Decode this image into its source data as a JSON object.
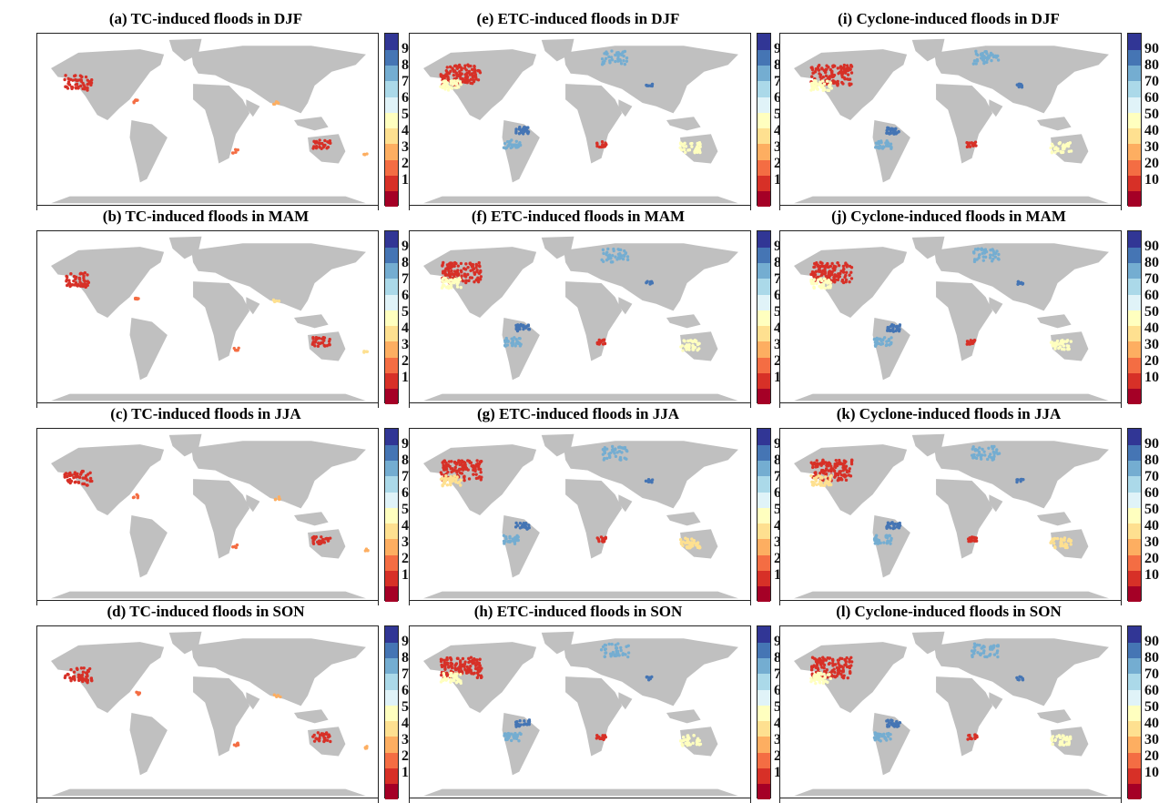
{
  "figure": {
    "panels": [
      {
        "id": "a",
        "title": "(a) TC-induced floods in DJF",
        "cyclone_type": "TC",
        "season": "DJF",
        "dominant_values": [
          10,
          20,
          30
        ]
      },
      {
        "id": "e",
        "title": "(e) ETC-induced floods in DJF",
        "cyclone_type": "ETC",
        "season": "DJF",
        "dominant_values": [
          10,
          50,
          80,
          90
        ]
      },
      {
        "id": "i",
        "title": "(i) Cyclone-induced floods in DJF",
        "cyclone_type": "Cyclone",
        "season": "DJF",
        "dominant_values": [
          10,
          50,
          80,
          90
        ]
      },
      {
        "id": "b",
        "title": "(b) TC-induced floods in MAM",
        "cyclone_type": "TC",
        "season": "MAM",
        "dominant_values": [
          10,
          20,
          40
        ]
      },
      {
        "id": "f",
        "title": "(f) ETC-induced floods in MAM",
        "cyclone_type": "ETC",
        "season": "MAM",
        "dominant_values": [
          10,
          50,
          80,
          90
        ]
      },
      {
        "id": "j",
        "title": "(j) Cyclone-induced floods in MAM",
        "cyclone_type": "Cyclone",
        "season": "MAM",
        "dominant_values": [
          10,
          50,
          80,
          90
        ]
      },
      {
        "id": "c",
        "title": "(c) TC-induced floods in JJA",
        "cyclone_type": "TC",
        "season": "JJA",
        "dominant_values": [
          10,
          20,
          30
        ]
      },
      {
        "id": "g",
        "title": "(g) ETC-induced floods in JJA",
        "cyclone_type": "ETC",
        "season": "JJA",
        "dominant_values": [
          10,
          40,
          80,
          90
        ]
      },
      {
        "id": "k",
        "title": "(k) Cyclone-induced floods in JJA",
        "cyclone_type": "Cyclone",
        "season": "JJA",
        "dominant_values": [
          10,
          40,
          80,
          90
        ]
      },
      {
        "id": "d",
        "title": "(d) TC-induced floods in SON",
        "cyclone_type": "TC",
        "season": "SON",
        "dominant_values": [
          10,
          20,
          30
        ]
      },
      {
        "id": "h",
        "title": "(h) ETC-induced floods in SON",
        "cyclone_type": "ETC",
        "season": "SON",
        "dominant_values": [
          10,
          50,
          80,
          90
        ]
      },
      {
        "id": "l",
        "title": "(l) Cyclone-induced floods in SON",
        "cyclone_type": "Cyclone",
        "season": "SON",
        "dominant_values": [
          10,
          50,
          80,
          90
        ]
      }
    ],
    "colorbar": {
      "ticks": [
        "90",
        "80",
        "70",
        "60",
        "50",
        "40",
        "30",
        "20",
        "10"
      ],
      "colors": [
        "#a50026",
        "#d73027",
        "#f46d43",
        "#fdae61",
        "#fee090",
        "#ffffbf",
        "#e0f3f8",
        "#abd9e9",
        "#74add1",
        "#4575b4",
        "#313695"
      ]
    },
    "land_color": "#c0c0c0"
  }
}
